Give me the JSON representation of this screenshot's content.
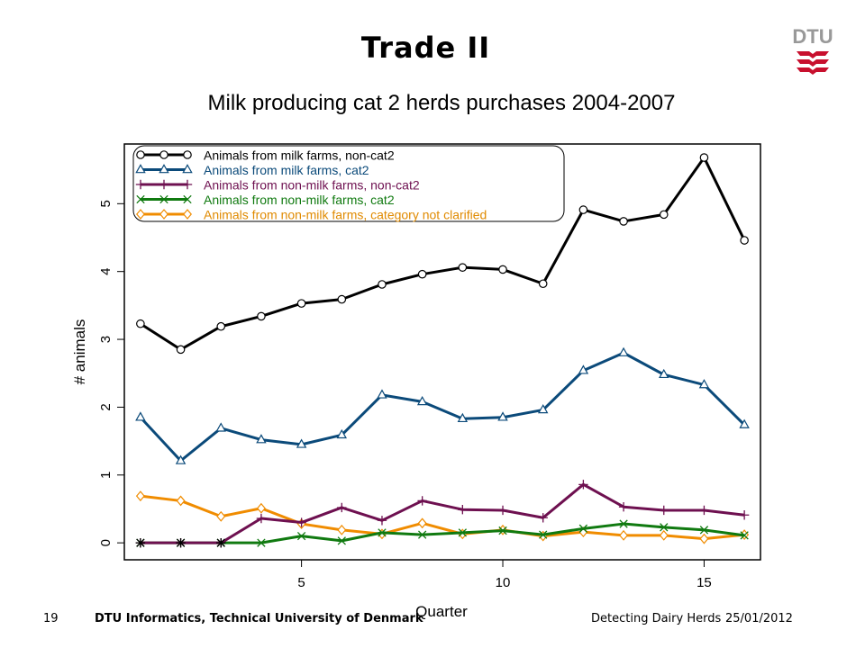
{
  "slide": {
    "title": "Trade II",
    "logo_text": "DTU"
  },
  "footer": {
    "page_number": "19",
    "organization": "DTU Informatics, Technical University of Denmark",
    "presentation": "Detecting Dairy Herds",
    "date": "25/01/2012"
  },
  "chart_data": {
    "type": "line",
    "title": "Milk producing cat 2 herds purchases 2004-2007",
    "xlabel": "Quarter",
    "ylabel": "# animals",
    "xlim": [
      0.6,
      16.4
    ],
    "ylim": [
      -0.25,
      5.88
    ],
    "x_ticks": [
      5,
      10,
      15
    ],
    "y_ticks": [
      0,
      1,
      2,
      3,
      4,
      5
    ],
    "grid": false,
    "legend_position": "top-left",
    "x": [
      1,
      2,
      3,
      4,
      5,
      6,
      7,
      8,
      9,
      10,
      11,
      12,
      13,
      14,
      15,
      16
    ],
    "series": [
      {
        "name": "Animals from milk farms, non-cat2",
        "color": "#000000",
        "marker": "circle",
        "values": [
          3.23,
          2.85,
          3.19,
          3.34,
          3.53,
          3.59,
          3.81,
          3.96,
          4.06,
          4.03,
          3.82,
          4.91,
          4.74,
          4.84,
          5.68,
          4.46
        ]
      },
      {
        "name": "Animals from milk farms, cat2",
        "color": "#0b4a7a",
        "marker": "triangle",
        "values": [
          1.85,
          1.21,
          1.69,
          1.52,
          1.45,
          1.59,
          2.18,
          2.08,
          1.83,
          1.85,
          1.96,
          2.54,
          2.8,
          2.48,
          2.33,
          1.74
        ]
      },
      {
        "name": "Animals from non-milk farms, non-cat2",
        "color": "#6e1050",
        "marker": "plus",
        "values": [
          0,
          0,
          0,
          0.36,
          0.3,
          0.52,
          0.33,
          0.62,
          0.49,
          0.48,
          0.37,
          0.86,
          0.53,
          0.48,
          0.48,
          0.41
        ]
      },
      {
        "name": "Animals from non-milk farms, cat2",
        "color": "#107a10",
        "marker": "cross",
        "values": [
          0,
          0,
          0,
          0,
          0.1,
          0.03,
          0.15,
          0.12,
          0.15,
          0.18,
          0.12,
          0.21,
          0.28,
          0.23,
          0.19,
          0.11
        ]
      },
      {
        "name": "Animals from non-milk farms, category not clarified",
        "color": "#f08c00",
        "marker": "diamond",
        "values": [
          0.69,
          0.62,
          0.39,
          0.51,
          0.28,
          0.19,
          0.13,
          0.29,
          0.13,
          0.19,
          0.1,
          0.16,
          0.11,
          0.11,
          0.06,
          0.12
        ]
      }
    ]
  }
}
